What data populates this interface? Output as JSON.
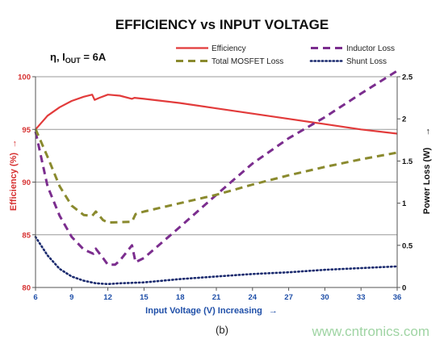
{
  "chart_data": {
    "type": "line",
    "title": "EFFICIENCY vs INPUT VOLTAGE",
    "condition": {
      "symbol": "η, I",
      "subscript": "OUT",
      "suffix": " = 6A"
    },
    "xlabel": "Input Voltage (V) Increasing",
    "ylabel_left": "Efficiency (%)",
    "ylabel_right": "Power Loss (W)",
    "caption": "(b)",
    "xlim": [
      6,
      36
    ],
    "ylim_left": [
      80,
      100
    ],
    "ylim_right": [
      0,
      2.5
    ],
    "x_ticks": [
      "6",
      "9",
      "12",
      "15",
      "18",
      "21",
      "24",
      "27",
      "30",
      "33",
      "36"
    ],
    "y_left_ticks": [
      "80",
      "85",
      "90",
      "95",
      "100"
    ],
    "y_right_ticks": [
      "0",
      "0.5",
      "1",
      "1.5",
      "2",
      "2.5"
    ],
    "grid": "horizontal",
    "legend_position": "top",
    "series": [
      {
        "name": "Efficiency",
        "axis": "left",
        "color": "#e23b3b",
        "style": "solid",
        "points": [
          [
            6,
            95.0
          ],
          [
            7,
            96.3
          ],
          [
            8,
            97.1
          ],
          [
            9,
            97.7
          ],
          [
            10,
            98.1
          ],
          [
            10.7,
            98.3
          ],
          [
            10.9,
            97.8
          ],
          [
            11.3,
            98.0
          ],
          [
            12,
            98.3
          ],
          [
            13,
            98.2
          ],
          [
            14,
            97.9
          ],
          [
            14.2,
            98.0
          ],
          [
            15,
            97.9
          ],
          [
            18,
            97.5
          ],
          [
            21,
            97.0
          ],
          [
            24,
            96.5
          ],
          [
            27,
            96.0
          ],
          [
            30,
            95.5
          ],
          [
            33,
            95.0
          ],
          [
            36,
            94.6
          ]
        ]
      },
      {
        "name": "Inductor Loss",
        "axis": "right",
        "color": "#7b2d8e",
        "style": "dash",
        "points": [
          [
            6,
            1.85
          ],
          [
            7,
            1.2
          ],
          [
            8,
            0.85
          ],
          [
            9,
            0.6
          ],
          [
            10,
            0.45
          ],
          [
            10.8,
            0.4
          ],
          [
            11,
            0.46
          ],
          [
            11.6,
            0.35
          ],
          [
            12,
            0.27
          ],
          [
            12.6,
            0.27
          ],
          [
            13,
            0.32
          ],
          [
            14,
            0.5
          ],
          [
            14.3,
            0.3
          ],
          [
            15,
            0.35
          ],
          [
            18,
            0.72
          ],
          [
            21,
            1.1
          ],
          [
            24,
            1.47
          ],
          [
            27,
            1.77
          ],
          [
            30,
            2.02
          ],
          [
            33,
            2.3
          ],
          [
            36,
            2.57
          ]
        ]
      },
      {
        "name": "Total MOSFET Loss",
        "axis": "right",
        "color": "#8a8a2e",
        "style": "dash",
        "points": [
          [
            6,
            1.88
          ],
          [
            7,
            1.55
          ],
          [
            8,
            1.2
          ],
          [
            9,
            0.97
          ],
          [
            10,
            0.86
          ],
          [
            10.7,
            0.85
          ],
          [
            11,
            0.9
          ],
          [
            11.6,
            0.8
          ],
          [
            12,
            0.77
          ],
          [
            14,
            0.78
          ],
          [
            14.3,
            0.87
          ],
          [
            15,
            0.9
          ],
          [
            18,
            1.0
          ],
          [
            21,
            1.1
          ],
          [
            24,
            1.22
          ],
          [
            27,
            1.33
          ],
          [
            30,
            1.43
          ],
          [
            33,
            1.52
          ],
          [
            36,
            1.6
          ]
        ]
      },
      {
        "name": "Shunt Loss",
        "axis": "right",
        "color": "#1a2a6e",
        "style": "dot",
        "points": [
          [
            6,
            0.6
          ],
          [
            7,
            0.38
          ],
          [
            8,
            0.22
          ],
          [
            9,
            0.13
          ],
          [
            10,
            0.08
          ],
          [
            11,
            0.05
          ],
          [
            12,
            0.04
          ],
          [
            13,
            0.05
          ],
          [
            15,
            0.06
          ],
          [
            18,
            0.1
          ],
          [
            21,
            0.13
          ],
          [
            24,
            0.16
          ],
          [
            27,
            0.18
          ],
          [
            30,
            0.21
          ],
          [
            33,
            0.23
          ],
          [
            36,
            0.25
          ]
        ]
      }
    ],
    "watermark": "www.cntronics.com",
    "colors": {
      "left_axis": "#d62f2f",
      "bottom_axis": "#1f4fa8",
      "right_axis": "#111111",
      "grid": "#999999"
    }
  }
}
